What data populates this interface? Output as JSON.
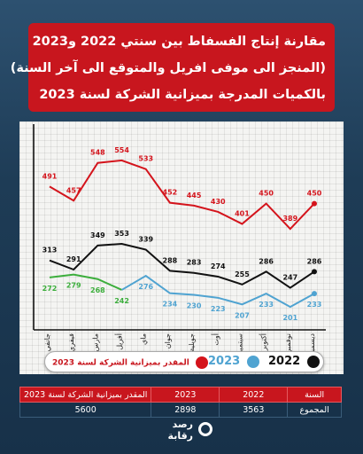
{
  "title_lines": [
    "مقارنة إنتاج الفسفاط بين سنتي 2022 و2023",
    "(المنجز الى موفى افريل والمتوقع الى آخر السنة)",
    "بالكميات المدرجة بميزانية الشركة لسنة 2023"
  ],
  "colors": {
    "budget": "#d4141c",
    "y2023": "#4fa3d1",
    "y2022": "#111111",
    "green": "#3cae3c",
    "red_banner": "#c8161e",
    "navy": "#173149"
  },
  "legend": {
    "budget": "المقدر بميزانية الشركة لسنة 2023",
    "y2023": "2023",
    "y2022": "2022"
  },
  "chart_data": {
    "type": "line",
    "categories": [
      "جانفي",
      "فيفري",
      "مارس",
      "أفريل",
      "ماي",
      "جوان",
      "جويلية",
      "أوت",
      "سبتمبر",
      "أكتوبر",
      "نوفمبر",
      "ديسمبر"
    ],
    "ylim": [
      150,
      620
    ],
    "series": [
      {
        "name": "المقدر بميزانية الشركة لسنة 2023",
        "color": "#d4141c",
        "values": [
          491,
          457,
          548,
          554,
          533,
          452,
          445,
          430,
          401,
          450,
          389,
          450
        ]
      },
      {
        "name": "2022",
        "color": "#111111",
        "values": [
          313,
          291,
          349,
          353,
          339,
          288,
          283,
          274,
          255,
          286,
          247,
          286
        ]
      },
      {
        "name": "2023",
        "color": "#4fa3d1",
        "actual_color": "#3cae3c",
        "actual_count": 4,
        "values": [
          272,
          279,
          268,
          242,
          276,
          234,
          230,
          223,
          207,
          233,
          201,
          233
        ]
      }
    ]
  },
  "table": {
    "headers": [
      "السنة",
      "2022",
      "2023",
      "المقدر بميزانية الشركة لسنة 2023"
    ],
    "row": [
      "المجموع",
      "3563",
      "2898",
      "5600"
    ]
  },
  "logo": {
    "line1": "رصد",
    "line2": "رقابة"
  }
}
